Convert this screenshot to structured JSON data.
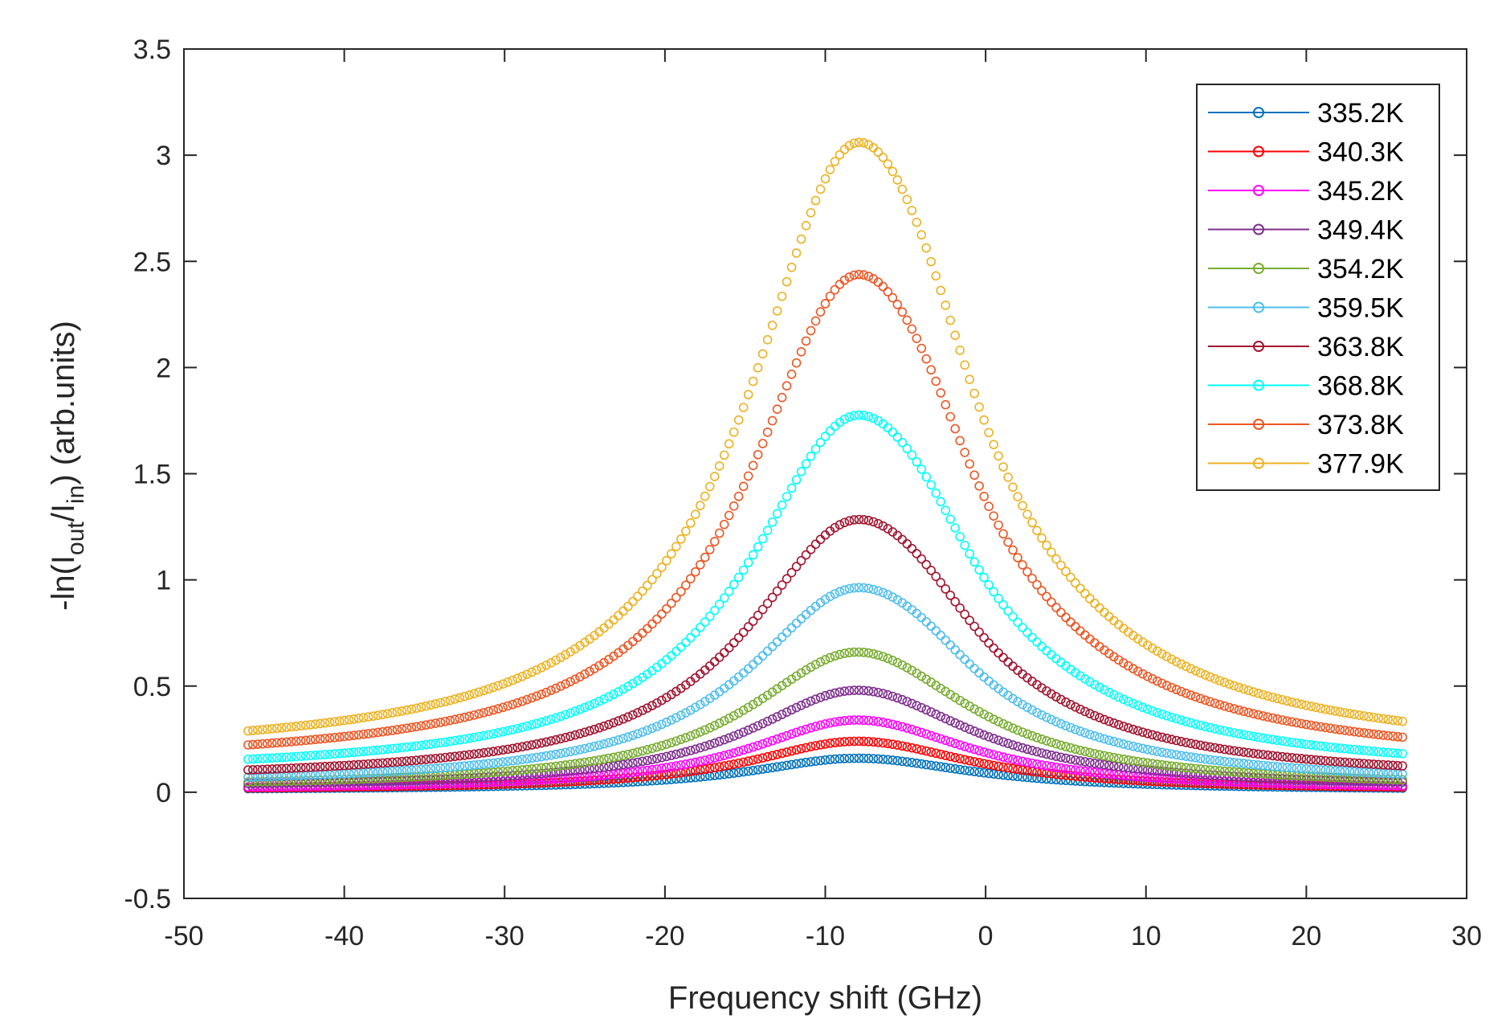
{
  "chart_data": {
    "type": "scatter",
    "title": "",
    "xlabel": "Frequency shift (GHz)",
    "ylabel_parts": [
      "-ln(I",
      "out",
      "/I",
      "in",
      ") (arb.units)"
    ],
    "xlim": [
      -50,
      30
    ],
    "ylim": [
      -0.5,
      3.5
    ],
    "xticks": [
      -50,
      -40,
      -30,
      -20,
      -10,
      0,
      10,
      20,
      30
    ],
    "xtick_labels": [
      "-50",
      "-40",
      "-30",
      "-20",
      "-10",
      "0",
      "10",
      "20",
      "30"
    ],
    "yticks": [
      -0.5,
      0,
      0.5,
      1,
      1.5,
      2,
      2.5,
      3,
      3.5
    ],
    "ytick_labels": [
      "-0.5",
      "0",
      "0.5",
      "1",
      "1.5",
      "2",
      "2.5",
      "3",
      "3.5"
    ],
    "grid": false,
    "legend_position": "top-right",
    "x_range": [
      -46,
      26
    ],
    "peak_x": -8,
    "series": [
      {
        "name": "335.2K",
        "color": "#0072BD",
        "peak": 0.16,
        "base": 0.01
      },
      {
        "name": "340.3K",
        "color": "#FF0000",
        "peak": 0.24,
        "base": 0.01
      },
      {
        "name": "345.2K",
        "color": "#FF00FF",
        "peak": 0.34,
        "base": 0.01
      },
      {
        "name": "349.4K",
        "color": "#7E2F8E",
        "peak": 0.48,
        "base": 0.02
      },
      {
        "name": "354.2K",
        "color": "#77AC30",
        "peak": 0.66,
        "base": 0.02
      },
      {
        "name": "359.5K",
        "color": "#4DBEEE",
        "peak": 0.96,
        "base": 0.03
      },
      {
        "name": "363.8K",
        "color": "#A2142F",
        "peak": 1.28,
        "base": 0.05
      },
      {
        "name": "368.8K",
        "color": "#00FFFF",
        "peak": 1.77,
        "base": 0.08
      },
      {
        "name": "373.8K",
        "color": "#EE5522",
        "peak": 2.43,
        "base": 0.12
      },
      {
        "name": "377.9K",
        "color": "#EDB120",
        "peak": 3.05,
        "base": 0.16
      }
    ]
  }
}
